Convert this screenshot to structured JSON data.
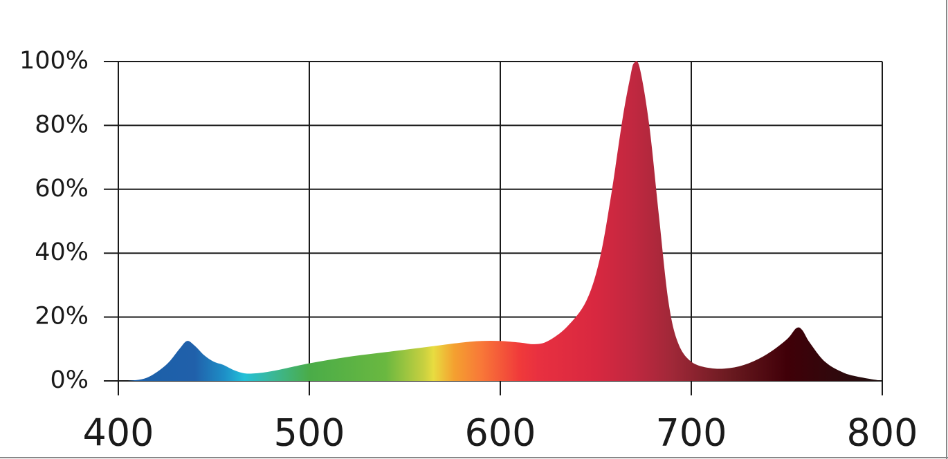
{
  "chart_data": {
    "type": "area",
    "x": [
      405,
      415,
      425,
      432,
      436,
      440,
      445,
      450,
      455,
      460,
      465,
      470,
      480,
      500,
      520,
      540,
      560,
      580,
      590,
      600,
      610,
      618,
      625,
      635,
      645,
      652,
      658,
      664,
      668,
      670,
      673,
      678,
      683,
      688,
      693,
      700,
      710,
      720,
      730,
      740,
      750,
      755,
      758,
      762,
      770,
      780,
      790,
      800
    ],
    "values": [
      0,
      1,
      5,
      10,
      12.5,
      11,
      8,
      6,
      5,
      3.5,
      2.5,
      2.3,
      3,
      5.5,
      7.5,
      9,
      10.5,
      12,
      12.5,
      12.5,
      12,
      11.5,
      12.5,
      17,
      25,
      38,
      58,
      82,
      95,
      99.5,
      98,
      80,
      52,
      25,
      12,
      6,
      4,
      4,
      5.5,
      8.5,
      13,
      16.5,
      16,
      12,
      6,
      2.5,
      1,
      0
    ],
    "xlim": [
      400,
      800
    ],
    "xticks": [
      400,
      500,
      600,
      700,
      800
    ],
    "ylim": [
      0,
      100
    ],
    "yticks": [
      {
        "value": 0,
        "label": "0%"
      },
      {
        "value": 20,
        "label": "20%"
      },
      {
        "value": 40,
        "label": "40%"
      },
      {
        "value": 60,
        "label": "60%"
      },
      {
        "value": 80,
        "label": "80%"
      },
      {
        "value": 100,
        "label": "100%"
      }
    ],
    "grid": true
  }
}
